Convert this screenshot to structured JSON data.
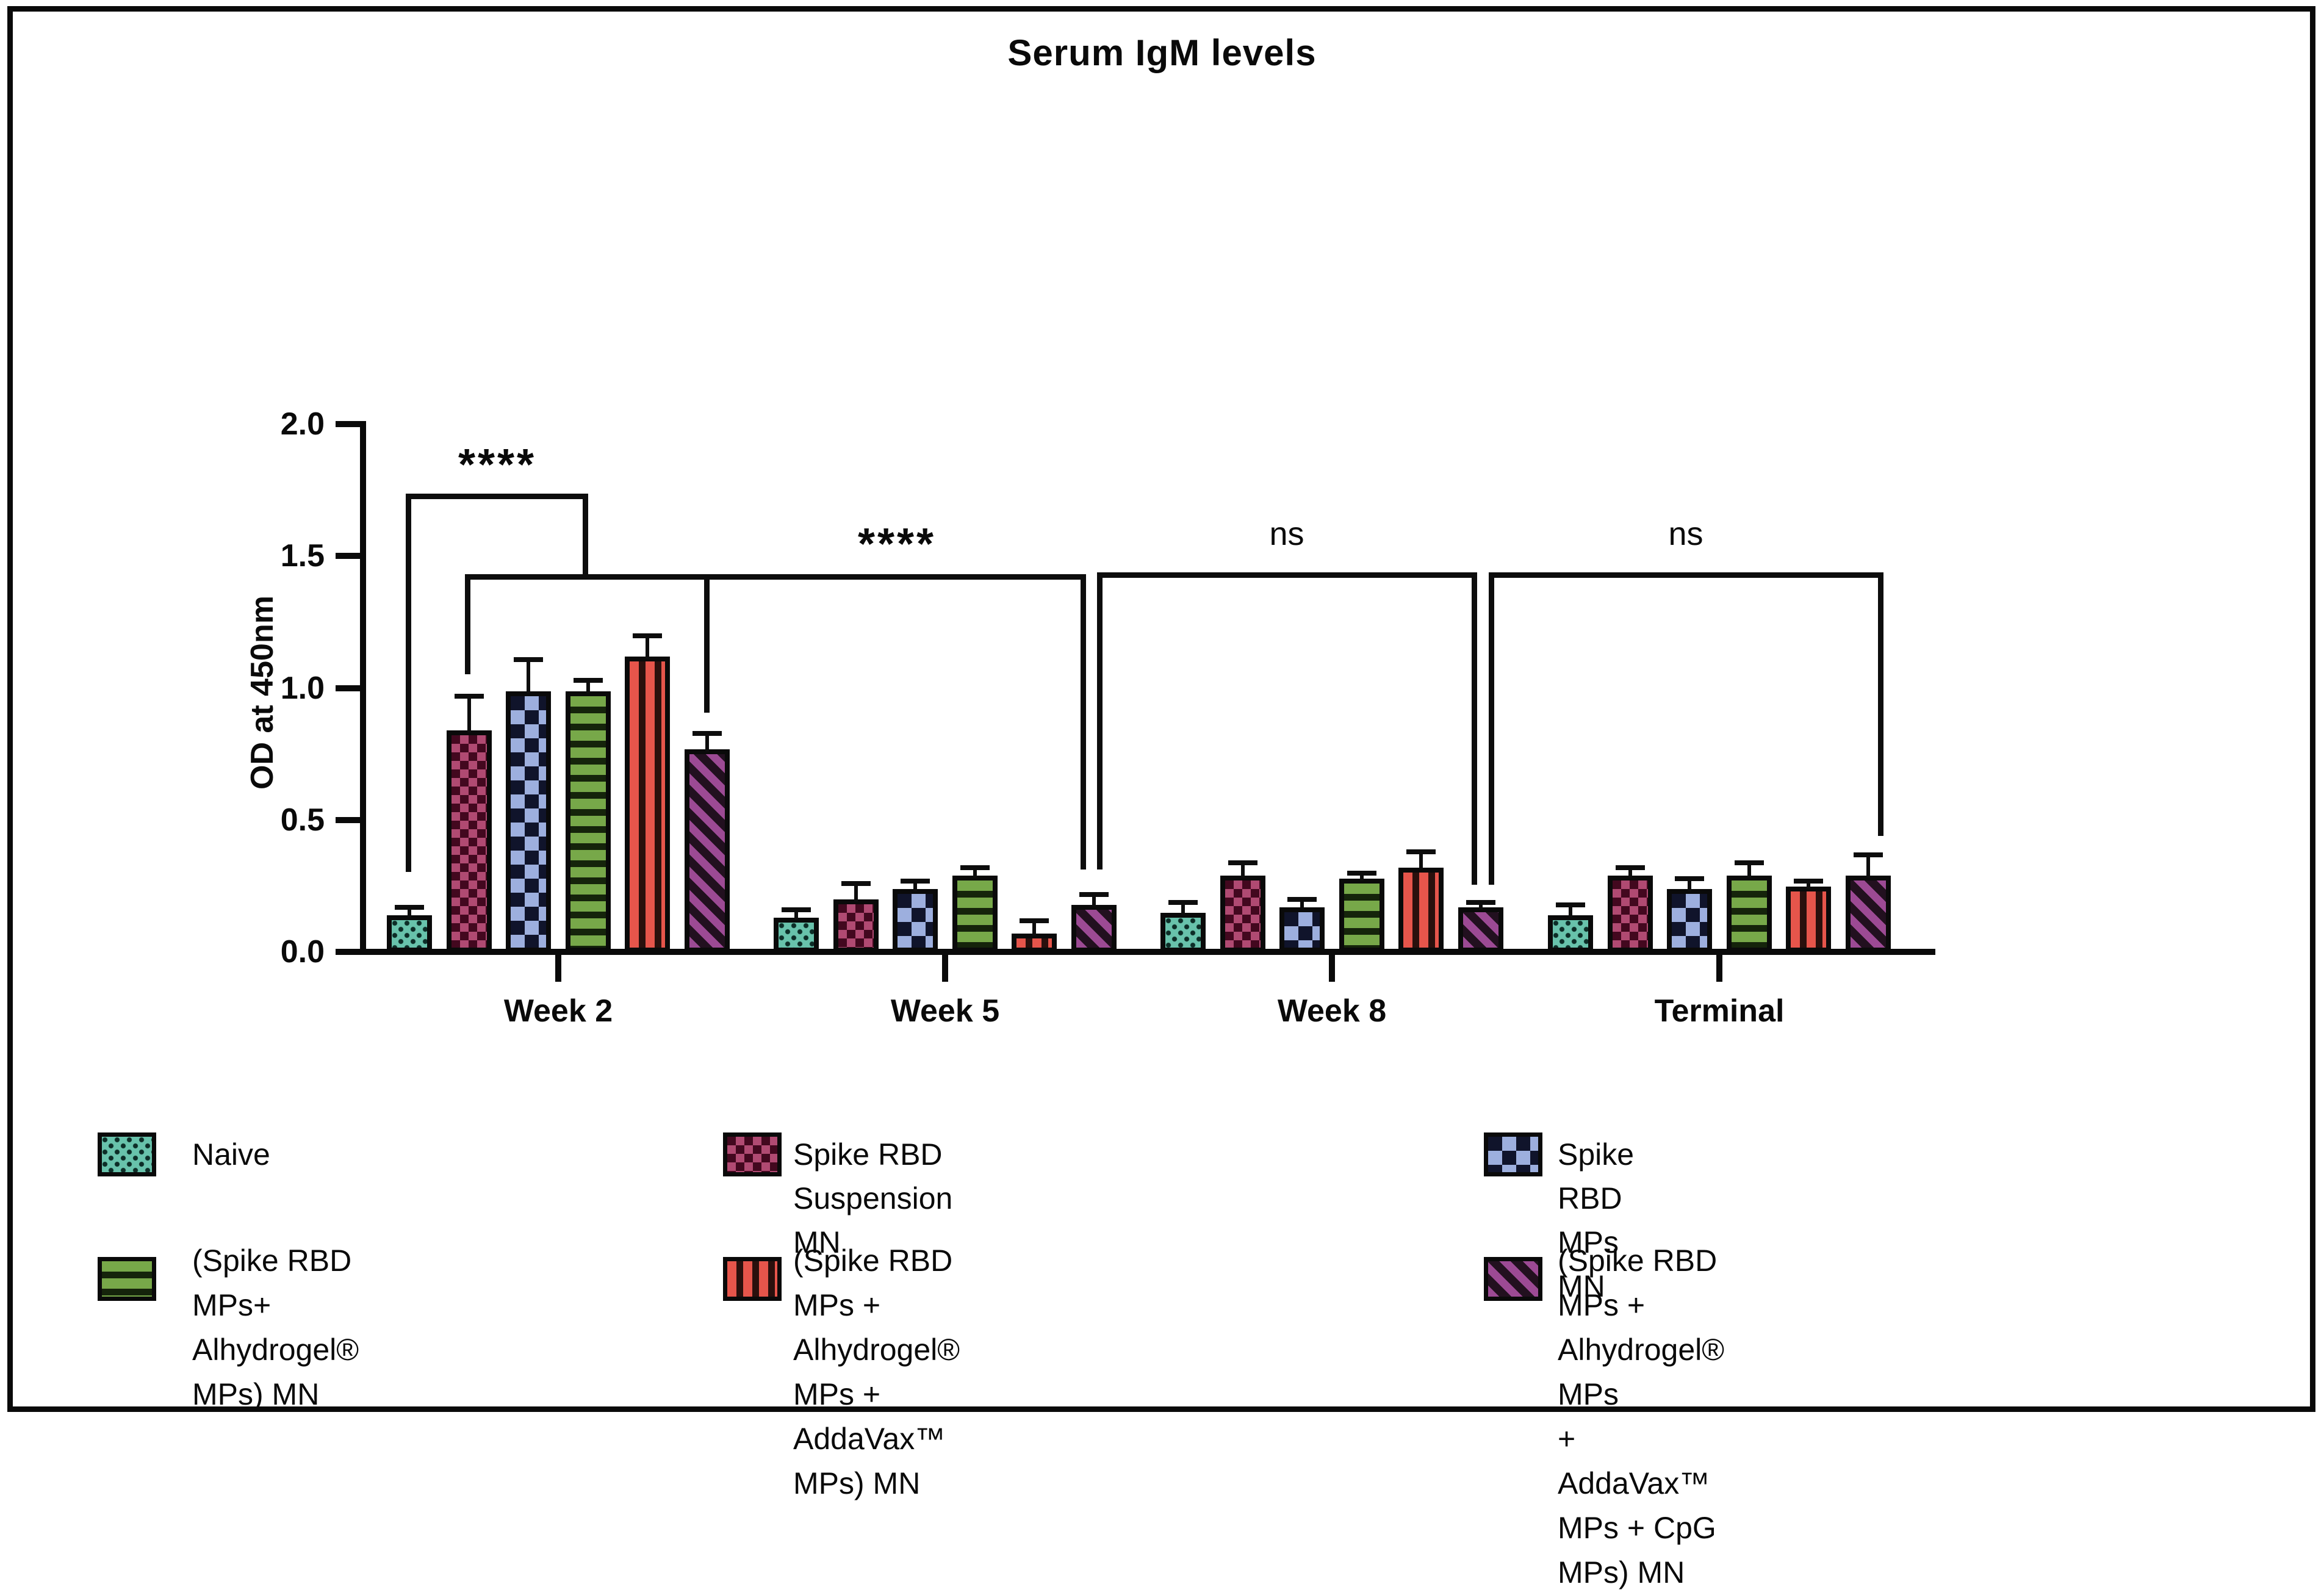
{
  "chart_data": {
    "type": "bar",
    "title": "Serum IgM levels",
    "ylabel": "OD at 450nm",
    "ylim": [
      0.0,
      2.0
    ],
    "yticks": [
      0.0,
      0.5,
      1.0,
      1.5,
      2.0
    ],
    "grid": "off",
    "legend_position": "bottom",
    "categories": [
      "Week 2",
      "Week 5",
      "Week 8",
      "Terminal"
    ],
    "series": [
      {
        "name": "Naive",
        "pattern": "dots",
        "color": "#68c2ab",
        "accent": "#0d2d27",
        "values": [
          0.15,
          0.14,
          0.16,
          0.15
        ],
        "errors": [
          0.03,
          0.03,
          0.04,
          0.04
        ]
      },
      {
        "name": "Spike RBD Suspension MN",
        "pattern": "checker-small",
        "color": "#b04a72",
        "accent": "#43081f",
        "values": [
          0.85,
          0.21,
          0.3,
          0.3
        ],
        "errors": [
          0.13,
          0.06,
          0.05,
          0.03
        ]
      },
      {
        "name": "Spike RBD MPs MN",
        "pattern": "checker",
        "color": "#9dafde",
        "accent": "#10142b",
        "values": [
          1.0,
          0.25,
          0.18,
          0.25
        ],
        "errors": [
          0.12,
          0.03,
          0.03,
          0.04
        ]
      },
      {
        "name": "(Spike RBD MPs+ Alhydrogel® MPs) MN",
        "pattern": "h-stripes",
        "color": "#77a849",
        "accent": "#15240b",
        "values": [
          1.0,
          0.3,
          0.29,
          0.3
        ],
        "errors": [
          0.04,
          0.03,
          0.02,
          0.05
        ]
      },
      {
        "name": "(Spike RBD MPs + Alhydrogel® MPs + AddaVax™ MPs) MN",
        "pattern": "v-stripes",
        "color": "#e6554b",
        "accent": "#2a100d",
        "values": [
          1.13,
          0.08,
          0.33,
          0.26
        ],
        "errors": [
          0.08,
          0.05,
          0.06,
          0.02
        ]
      },
      {
        "name": "(Spike RBD MPs + Alhydrogel® MPs + AddaVax™ MPs + CpG MPs) MN",
        "pattern": "d-stripes",
        "color": "#9c4a94",
        "accent": "#22101f",
        "values": [
          0.78,
          0.19,
          0.18,
          0.3
        ],
        "errors": [
          0.06,
          0.04,
          0.02,
          0.08
        ]
      }
    ],
    "significance": [
      {
        "label": "****",
        "style": "stars",
        "label_x": 815,
        "label_y": 726,
        "bar_y": 818,
        "legs": [
          {
            "x": 669,
            "y_end": 1429
          },
          {
            "x": 959,
            "y_end": 950
          }
        ]
      },
      {
        "label": "****",
        "style": "stars",
        "label_x": 1470,
        "label_y": 856,
        "bar_y": 950,
        "legs": [
          {
            "x": 766,
            "y_end": 1105
          },
          {
            "x": 1158,
            "y_end": 1168
          },
          {
            "x": 1775,
            "y_end": 1425
          }
        ]
      },
      {
        "label": "ns",
        "style": "ns",
        "label_x": 2109,
        "label_y": 848,
        "bar_y": 947,
        "legs": [
          {
            "x": 1802,
            "y_end": 1425
          },
          {
            "x": 2416,
            "y_end": 1450
          }
        ]
      },
      {
        "label": "ns",
        "style": "ns",
        "label_x": 2763,
        "label_y": 848,
        "bar_y": 947,
        "legs": [
          {
            "x": 2444,
            "y_end": 1450
          },
          {
            "x": 3082,
            "y_end": 1370
          }
        ]
      }
    ]
  },
  "legend": {
    "items": [
      {
        "series": 0,
        "label": "Naive"
      },
      {
        "series": 1,
        "label": "Spike RBD Suspension MN"
      },
      {
        "series": 2,
        "label": "Spike RBD MPs MN"
      },
      {
        "series": 3,
        "label": "(Spike RBD MPs+\nAlhydrogel® MPs) MN"
      },
      {
        "series": 4,
        "label": "(Spike RBD MPs + Alhydrogel®\nMPs + AddaVax™ MPs) MN"
      },
      {
        "series": 5,
        "label": "(Spike RBD MPs + Alhydrogel® MPs\n+ AddaVax™ MPs + CpG MPs) MN"
      }
    ]
  }
}
